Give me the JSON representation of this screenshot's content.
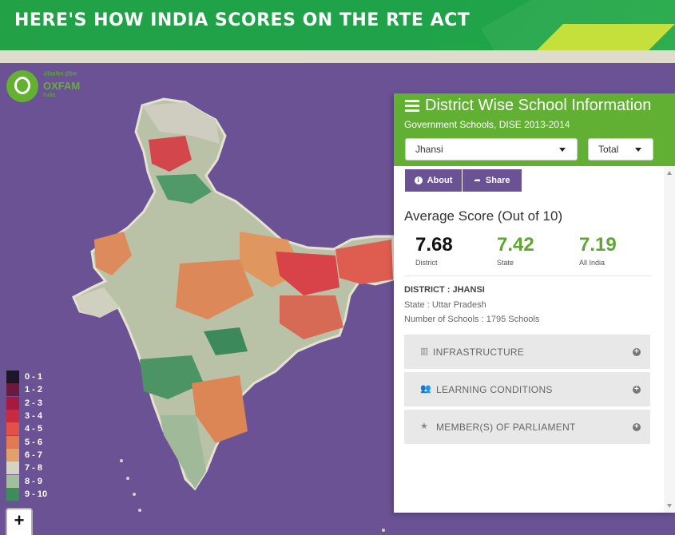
{
  "header": {
    "title": "HERE'S HOW INDIA SCORES ON THE RTE ACT"
  },
  "logo": {
    "brand": "OXFAM",
    "hindi": "ऑक्सफैम इंडिया",
    "sub": "India"
  },
  "legend": {
    "items": [
      {
        "label": "0 - 1",
        "color": "#1c1626"
      },
      {
        "label": "1 - 2",
        "color": "#6b1a3d"
      },
      {
        "label": "2 - 3",
        "color": "#a61a40"
      },
      {
        "label": "3 - 4",
        "color": "#c92a3f"
      },
      {
        "label": "4 - 5",
        "color": "#e25049"
      },
      {
        "label": "5 - 6",
        "color": "#e07a55"
      },
      {
        "label": "6 - 7",
        "color": "#e2a06a"
      },
      {
        "label": "7 - 8",
        "color": "#d6d3c5"
      },
      {
        "label": "8 - 9",
        "color": "#a3be9b"
      },
      {
        "label": "9 - 10",
        "color": "#3e8c5e"
      }
    ]
  },
  "zoom": {
    "in_label": "+"
  },
  "panel": {
    "title": "District Wise School Information",
    "subtitle": "Government Schools, DISE 2013-2014",
    "district_select": "Jhansi",
    "type_select": "Total",
    "about_label": "About",
    "share_label": "Share",
    "avg_title": "Average Score (Out of 10)",
    "scores": {
      "district": {
        "value": "7.68",
        "label": "District"
      },
      "state": {
        "value": "7.42",
        "label": "State"
      },
      "india": {
        "value": "7.19",
        "label": "All India"
      }
    },
    "district_name": "DISTRICT : JHANSI",
    "state_line": "State : Uttar Pradesh",
    "schools_line": "Number of Schools : 1795 Schools",
    "accordions": [
      {
        "label": "INFRASTRUCTURE",
        "icon": "building-icon"
      },
      {
        "label": "LEARNING CONDITIONS",
        "icon": "users-icon"
      },
      {
        "label": "MEMBER(S) OF PARLIAMENT",
        "icon": "star-icon"
      }
    ]
  },
  "colors": {
    "header_green": "#22a147",
    "panel_green": "#62b033",
    "map_bg": "#6a5294",
    "button_purple": "#6a5294"
  }
}
